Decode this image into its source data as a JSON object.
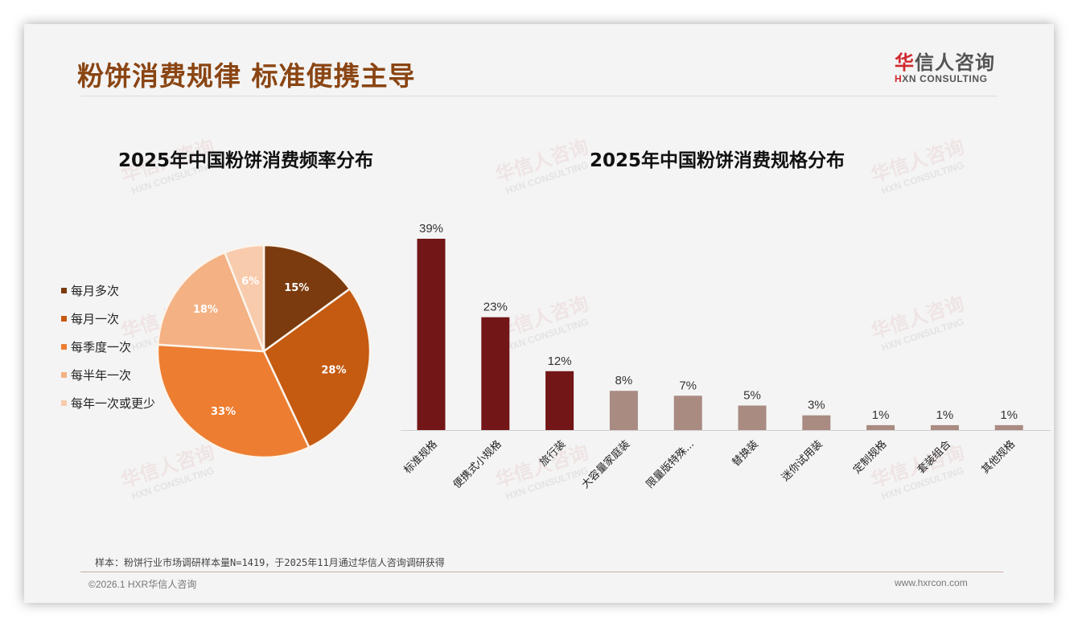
{
  "header": {
    "title": "粉饼消费规律 标准便携主导",
    "logo_cn_first": "华",
    "logo_cn_rest": "信人咨询",
    "logo_en_first": "H",
    "logo_en_rest": "XN CONSULTING"
  },
  "watermark": {
    "cn": "华信人咨询",
    "en": "HXN CONSULTING"
  },
  "pie": {
    "title": "2025年中国粉饼消费频率分布",
    "legend": [
      {
        "label": "每月多次",
        "color": "#7b3b0e"
      },
      {
        "label": "每月一次",
        "color": "#c55a11"
      },
      {
        "label": "每季度一次",
        "color": "#ed7d31"
      },
      {
        "label": "每半年一次",
        "color": "#f4b183"
      },
      {
        "label": "每年一次或更少",
        "color": "#f8cbad"
      }
    ]
  },
  "bar": {
    "title": "2025年中国粉饼消费规格分布",
    "highlight_color": "#731617",
    "muted_color": "#a98b82"
  },
  "chart_data": [
    {
      "type": "pie",
      "title": "2025年中国粉饼消费频率分布",
      "categories": [
        "每月多次",
        "每月一次",
        "每季度一次",
        "每半年一次",
        "每年一次或更少"
      ],
      "values": [
        15,
        28,
        33,
        18,
        6
      ],
      "labels": [
        "15%",
        "28%",
        "33%",
        "18%",
        "6%"
      ],
      "colors": [
        "#7b3b0e",
        "#c55a11",
        "#ed7d31",
        "#f4b183",
        "#f8cbad"
      ],
      "legend_position": "left",
      "unit": "%"
    },
    {
      "type": "bar",
      "title": "2025年中国粉饼消费规格分布",
      "categories": [
        "标准规格",
        "便携式小规格",
        "旅行装",
        "大容量家庭装",
        "限量版特殊...",
        "替换装",
        "迷你试用装",
        "定制规格",
        "套装组合",
        "其他规格"
      ],
      "values": [
        39,
        23,
        12,
        8,
        7,
        5,
        3,
        1,
        1,
        1
      ],
      "labels": [
        "39%",
        "23%",
        "12%",
        "8%",
        "7%",
        "5%",
        "3%",
        "1%",
        "1%",
        "1%"
      ],
      "highlighted_count": 3,
      "xlabel": "",
      "ylabel": "",
      "ylim": [
        0,
        40
      ],
      "grid": false,
      "unit": "%"
    }
  ],
  "footer": {
    "note": "样本：粉饼行业市场调研样本量N=1419，于2025年11月通过华信人咨询调研获得",
    "copyright": "©2026.1 HXR华信人咨询",
    "website": "www.hxrcon.com"
  }
}
